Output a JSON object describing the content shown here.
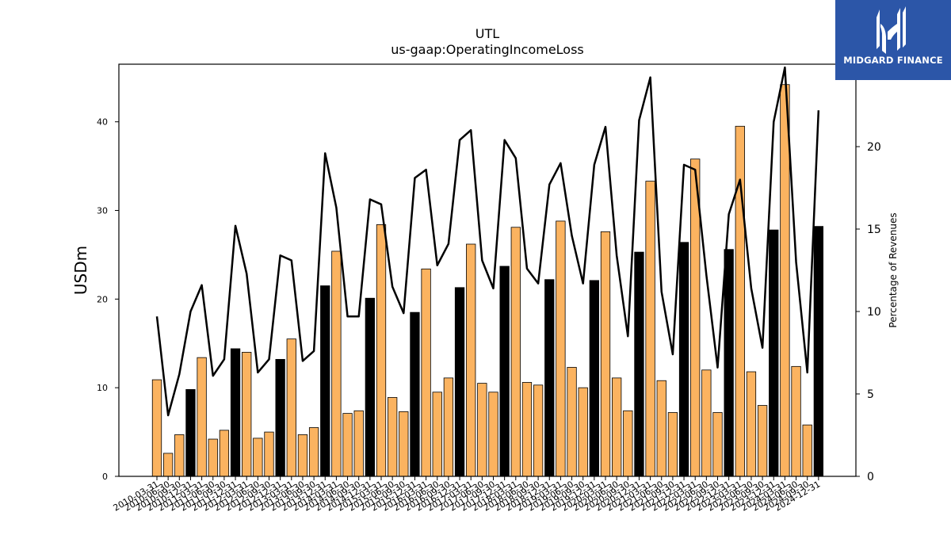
{
  "chart_data": {
    "type": "bar",
    "title": "UTL",
    "subtitle": "us-gaap:OperatingIncomeLoss",
    "ylabel": "USDm",
    "y2label": "Percentage of Revenues",
    "ylim": [
      0,
      46.5
    ],
    "y2lim": [
      0,
      25.0
    ],
    "yticks": [
      0,
      10,
      20,
      30,
      40
    ],
    "y2ticks": [
      0,
      5,
      10,
      15,
      20
    ],
    "grid": false,
    "categories": [
      "2010-03-31",
      "2010-06-30",
      "2010-09-30",
      "2010-12-31",
      "2011-03-31",
      "2011-06-30",
      "2011-09-30",
      "2011-12-31",
      "2012-03-31",
      "2012-06-30",
      "2012-09-30",
      "2012-12-31",
      "2013-03-31",
      "2013-06-30",
      "2013-09-30",
      "2013-12-31",
      "2014-03-31",
      "2014-06-30",
      "2014-09-30",
      "2014-12-31",
      "2015-03-31",
      "2015-06-30",
      "2015-09-30",
      "2015-12-31",
      "2016-03-31",
      "2016-06-30",
      "2016-09-30",
      "2016-12-31",
      "2017-03-31",
      "2017-06-30",
      "2017-09-30",
      "2017-12-31",
      "2018-03-31",
      "2018-06-30",
      "2018-09-30",
      "2018-12-31",
      "2019-03-31",
      "2019-06-30",
      "2019-09-30",
      "2019-12-31",
      "2020-03-31",
      "2020-06-30",
      "2020-09-30",
      "2020-12-31",
      "2021-03-31",
      "2021-06-30",
      "2021-09-30",
      "2021-12-31",
      "2022-03-31",
      "2022-06-30",
      "2022-09-30",
      "2022-12-31",
      "2023-03-31",
      "2023-06-30",
      "2023-09-30",
      "2023-12-31",
      "2024-03-31",
      "2024-06-30",
      "2024-09-30",
      "2024-12-31"
    ],
    "series": [
      {
        "type": "bar",
        "axis": "left",
        "values": [
          10.9,
          2.6,
          4.7,
          9.8,
          13.4,
          4.2,
          5.2,
          14.4,
          14.0,
          4.3,
          5.0,
          13.2,
          15.5,
          4.7,
          5.5,
          21.5,
          25.4,
          7.1,
          7.4,
          20.1,
          28.4,
          8.9,
          7.3,
          18.5,
          23.4,
          9.5,
          11.1,
          21.3,
          26.2,
          10.5,
          9.5,
          23.7,
          28.1,
          10.6,
          10.3,
          22.2,
          28.8,
          12.3,
          10.0,
          22.1,
          27.6,
          11.1,
          7.4,
          25.3,
          33.3,
          10.8,
          7.2,
          26.4,
          35.8,
          12.0,
          7.2,
          25.6,
          39.5,
          11.8,
          8.0,
          27.8,
          44.2,
          12.4,
          5.8,
          28.2
        ],
        "colors": [
          "#fbb360",
          "#fbb360",
          "#fbb360",
          "#000000",
          "#fbb360",
          "#fbb360",
          "#fbb360",
          "#000000",
          "#fbb360",
          "#fbb360",
          "#fbb360",
          "#000000",
          "#fbb360",
          "#fbb360",
          "#fbb360",
          "#000000",
          "#fbb360",
          "#fbb360",
          "#fbb360",
          "#000000",
          "#fbb360",
          "#fbb360",
          "#fbb360",
          "#000000",
          "#fbb360",
          "#fbb360",
          "#fbb360",
          "#000000",
          "#fbb360",
          "#fbb360",
          "#fbb360",
          "#000000",
          "#fbb360",
          "#fbb360",
          "#fbb360",
          "#000000",
          "#fbb360",
          "#fbb360",
          "#fbb360",
          "#000000",
          "#fbb360",
          "#fbb360",
          "#fbb360",
          "#000000",
          "#fbb360",
          "#fbb360",
          "#fbb360",
          "#000000",
          "#fbb360",
          "#fbb360",
          "#fbb360",
          "#000000",
          "#fbb360",
          "#fbb360",
          "#fbb360",
          "#000000",
          "#fbb360",
          "#fbb360",
          "#fbb360",
          "#000000"
        ]
      },
      {
        "type": "line",
        "axis": "right",
        "color": "#000000",
        "values": [
          9.7,
          3.7,
          6.2,
          10.0,
          11.6,
          6.1,
          7.1,
          15.2,
          12.3,
          6.3,
          7.1,
          13.4,
          13.1,
          7.0,
          7.6,
          19.6,
          16.3,
          9.7,
          9.7,
          16.8,
          16.5,
          11.5,
          9.9,
          18.1,
          18.6,
          12.8,
          14.1,
          20.4,
          21.0,
          13.1,
          11.4,
          20.4,
          19.3,
          12.6,
          11.7,
          17.7,
          19.0,
          14.6,
          11.7,
          18.9,
          21.2,
          13.4,
          8.5,
          21.6,
          24.2,
          11.2,
          7.4,
          18.9,
          18.6,
          12.2,
          6.6,
          15.9,
          18.0,
          11.4,
          7.8,
          21.5,
          24.8,
          13.0,
          6.3,
          22.2
        ]
      }
    ]
  },
  "logo": {
    "text": "MIDGARD FINANCE",
    "background": "#2c56a8",
    "icon": "midgard-m-icon"
  },
  "colors": {
    "bar_default": "#fbb360",
    "bar_highlight": "#000000",
    "line": "#000000"
  }
}
